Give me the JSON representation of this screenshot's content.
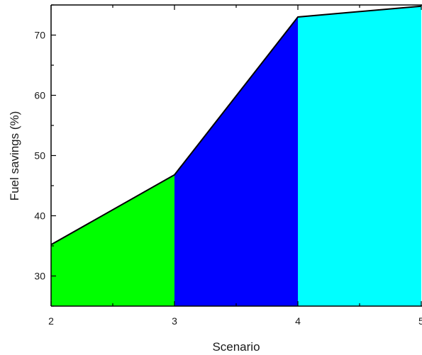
{
  "chart_data": {
    "type": "area",
    "title": "",
    "xlabel": "Scenario",
    "ylabel": "Fuel savings (%)",
    "x": [
      2,
      3,
      4,
      5
    ],
    "y": [
      35.2,
      46.8,
      73.0,
      74.8
    ],
    "xlim": [
      2,
      5
    ],
    "ylim": [
      25,
      75
    ],
    "xticks": [
      "2",
      "3",
      "4",
      "5"
    ],
    "yticks": [
      "30",
      "40",
      "50",
      "60",
      "70"
    ],
    "segments": [
      {
        "from": 2,
        "to": 3,
        "color": "#00ff00"
      },
      {
        "from": 3,
        "to": 4,
        "color": "#0000ff"
      },
      {
        "from": 4,
        "to": 5,
        "color": "#00ffff"
      }
    ],
    "line_color": "#000000",
    "grid": false
  }
}
